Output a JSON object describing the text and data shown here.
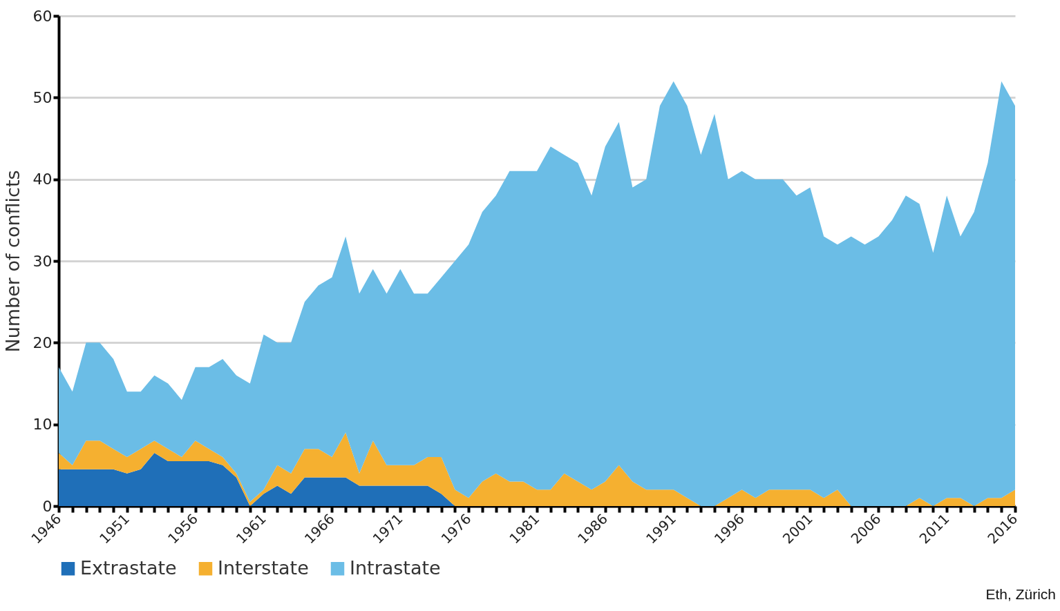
{
  "chart_data": {
    "type": "area",
    "stacked": true,
    "ylabel": "Number of conflicts",
    "x": [
      1946,
      1947,
      1948,
      1949,
      1950,
      1951,
      1952,
      1953,
      1954,
      1955,
      1956,
      1957,
      1958,
      1959,
      1960,
      1961,
      1962,
      1963,
      1964,
      1965,
      1966,
      1967,
      1968,
      1969,
      1970,
      1971,
      1972,
      1973,
      1974,
      1975,
      1976,
      1977,
      1978,
      1979,
      1980,
      1981,
      1982,
      1983,
      1984,
      1985,
      1986,
      1987,
      1988,
      1989,
      1990,
      1991,
      1992,
      1993,
      1994,
      1995,
      1996,
      1997,
      1998,
      1999,
      2000,
      2001,
      2002,
      2003,
      2004,
      2005,
      2006,
      2007,
      2008,
      2009,
      2010,
      2011,
      2012,
      2013,
      2014,
      2015,
      2016
    ],
    "series": [
      {
        "name": "Extrastate",
        "color": "#1f6fb8",
        "values": [
          4.5,
          4.5,
          4.5,
          4.5,
          4.5,
          4,
          4.5,
          6.5,
          5.5,
          5.5,
          5.5,
          5.5,
          5,
          3.5,
          0,
          1.5,
          2.5,
          1.5,
          3.5,
          3.5,
          3.5,
          3.5,
          2.5,
          2.5,
          2.5,
          2.5,
          2.5,
          2.5,
          1.5,
          0,
          0,
          0,
          0,
          0,
          0,
          0,
          0,
          0,
          0,
          0,
          0,
          0,
          0,
          0,
          0,
          0,
          0,
          0,
          0,
          0,
          0,
          0,
          0,
          0,
          0,
          0,
          0,
          0,
          0,
          0,
          0,
          0,
          0,
          0,
          0,
          0,
          0,
          0,
          0,
          0,
          0
        ]
      },
      {
        "name": "Interstate",
        "color": "#f5b030",
        "values": [
          2,
          0.5,
          3.5,
          3.5,
          2.5,
          2,
          2.5,
          1.5,
          1.5,
          0.5,
          2.5,
          1.5,
          1,
          0.5,
          0.5,
          0.5,
          2.5,
          2.5,
          3.5,
          3.5,
          2.5,
          5.5,
          1.5,
          5.5,
          2.5,
          2.5,
          2.5,
          3.5,
          4.5,
          2,
          1,
          3,
          4,
          3,
          3,
          2,
          2,
          4,
          3,
          2,
          3,
          5,
          3,
          2,
          2,
          2,
          1,
          0,
          0,
          1,
          2,
          1,
          2,
          2,
          2,
          2,
          1,
          2,
          0,
          0,
          0,
          0,
          0,
          1,
          0,
          1,
          1,
          0,
          1,
          1,
          2
        ]
      },
      {
        "name": "Intrastate",
        "color": "#6bbde6",
        "values": [
          10.5,
          9,
          12,
          12,
          11,
          8,
          7,
          8,
          8,
          7,
          9,
          10,
          12,
          12,
          14.5,
          19,
          15,
          16,
          18,
          20,
          22,
          24,
          22,
          21,
          21,
          24,
          21,
          20,
          22,
          28,
          31,
          33,
          34,
          38,
          38,
          39,
          42,
          39,
          39,
          36,
          41,
          42,
          36,
          38,
          47,
          50,
          48,
          43,
          48,
          39,
          39,
          39,
          38,
          38,
          36,
          37,
          32,
          30,
          33,
          32,
          33,
          35,
          38,
          36,
          31,
          37,
          32,
          36,
          41,
          51,
          47
        ]
      }
    ],
    "xlim": [
      1946,
      2016
    ],
    "xticks": [
      1946,
      {
        "value": 1947,
        "label": null
      },
      {
        "value": 1948,
        "label": null
      },
      {
        "value": 1949,
        "label": null
      },
      {
        "value": 1950,
        "label": null
      },
      1951,
      {
        "value": 1952,
        "label": null
      },
      {
        "value": 1953,
        "label": null
      },
      {
        "value": 1954,
        "label": null
      },
      {
        "value": 1955,
        "label": null
      },
      1956,
      {
        "value": 1957,
        "label": null
      },
      {
        "value": 1958,
        "label": null
      },
      {
        "value": 1959,
        "label": null
      },
      {
        "value": 1960,
        "label": null
      },
      1961,
      {
        "value": 1962,
        "label": null
      },
      {
        "value": 1963,
        "label": null
      },
      {
        "value": 1964,
        "label": null
      },
      {
        "value": 1965,
        "label": null
      },
      1966,
      {
        "value": 1967,
        "label": null
      },
      {
        "value": 1968,
        "label": null
      },
      {
        "value": 1969,
        "label": null
      },
      {
        "value": 1970,
        "label": null
      },
      1971,
      {
        "value": 1972,
        "label": null
      },
      {
        "value": 1973,
        "label": null
      },
      {
        "value": 1974,
        "label": null
      },
      {
        "value": 1975,
        "label": null
      },
      1976,
      {
        "value": 1977,
        "label": null
      },
      {
        "value": 1978,
        "label": null
      },
      {
        "value": 1979,
        "label": null
      },
      {
        "value": 1980,
        "label": null
      },
      1981,
      {
        "value": 1982,
        "label": null
      },
      {
        "value": 1983,
        "label": null
      },
      {
        "value": 1984,
        "label": null
      },
      {
        "value": 1985,
        "label": null
      },
      1986,
      {
        "value": 1987,
        "label": null
      },
      {
        "value": 1988,
        "label": null
      },
      {
        "value": 1989,
        "label": null
      },
      {
        "value": 1990,
        "label": null
      },
      1991,
      {
        "value": 1992,
        "label": null
      },
      {
        "value": 1993,
        "label": null
      },
      {
        "value": 1994,
        "label": null
      },
      {
        "value": 1995,
        "label": null
      },
      1996,
      {
        "value": 1997,
        "label": null
      },
      {
        "value": 1998,
        "label": null
      },
      {
        "value": 1999,
        "label": null
      },
      {
        "value": 2000,
        "label": null
      },
      2001,
      {
        "value": 2002,
        "label": null
      },
      {
        "value": 2003,
        "label": null
      },
      {
        "value": 2004,
        "label": null
      },
      {
        "value": 2005,
        "label": null
      },
      2006,
      {
        "value": 2007,
        "label": null
      },
      {
        "value": 2008,
        "label": null
      },
      {
        "value": 2009,
        "label": null
      },
      {
        "value": 2010,
        "label": null
      },
      2011,
      {
        "value": 2012,
        "label": null
      },
      {
        "value": 2013,
        "label": null
      },
      {
        "value": 2014,
        "label": null
      },
      {
        "value": 2015,
        "label": null
      },
      2016
    ],
    "ylim": [
      0,
      60
    ],
    "yticks": [
      0,
      10,
      20,
      30,
      40,
      50,
      60
    ],
    "grid": "y",
    "legend": "bottom",
    "annotations": [
      "Eth, Zürich"
    ]
  }
}
